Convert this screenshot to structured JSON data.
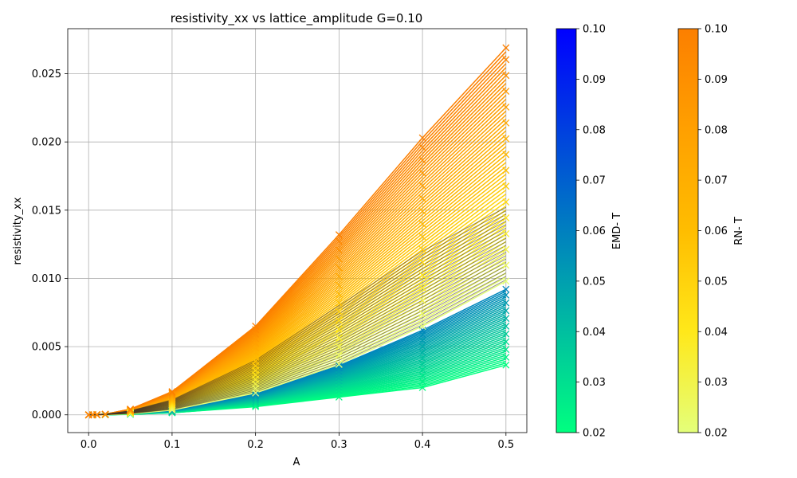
{
  "chart_data": {
    "type": "line",
    "title": "resistivity_xx vs lattice_amplitude G=0.10",
    "xlabel": "A",
    "ylabel": "resistivity_xx",
    "xlim": [
      -0.025,
      0.525
    ],
    "ylim": [
      -0.0013,
      0.0283
    ],
    "x_ticks": [
      0.0,
      0.1,
      0.2,
      0.3,
      0.4,
      0.5
    ],
    "x_tick_labels": [
      "0.0",
      "0.1",
      "0.2",
      "0.3",
      "0.4",
      "0.5"
    ],
    "y_ticks": [
      0.0,
      0.005,
      0.01,
      0.015,
      0.02,
      0.025
    ],
    "y_tick_labels": [
      "0.000",
      "0.005",
      "0.010",
      "0.015",
      "0.020",
      "0.025"
    ],
    "grid": true,
    "marker": "x",
    "x": [
      0.0,
      0.005,
      0.01,
      0.02,
      0.05,
      0.1,
      0.2,
      0.3,
      0.4,
      0.5
    ],
    "series_groups": [
      {
        "name": "EMD",
        "colorbar_label": "EMD- T",
        "colormap": "winter",
        "t_min": 0.02,
        "t_max": 0.1,
        "colorbar_ticks": [
          "0.02",
          "0.03",
          "0.04",
          "0.05",
          "0.06",
          "0.07",
          "0.08",
          "0.09",
          "0.10"
        ],
        "curve_count": 40,
        "shown_t_range": [
          0.02,
          0.058
        ],
        "y_at_t_min": [
          0.0,
          4e-07,
          1.5e-06,
          6e-06,
          3.8e-05,
          0.00015,
          0.0006,
          0.0013,
          0.002,
          0.00365
        ],
        "y_at_t_max": [
          0.0,
          1.5e-06,
          6e-06,
          2.4e-05,
          0.00015,
          0.00033,
          0.00155,
          0.0036,
          0.0062,
          0.0092
        ]
      },
      {
        "name": "RN",
        "colorbar_label": "RN- T",
        "colormap": "Wistia",
        "t_min": 0.02,
        "t_max": 0.1,
        "colorbar_ticks": [
          "0.02",
          "0.03",
          "0.04",
          "0.05",
          "0.06",
          "0.07",
          "0.08",
          "0.09",
          "0.10"
        ],
        "curve_count": 60,
        "shown_t_range": [
          0.02,
          0.1
        ],
        "y_at_t_min": [
          0.0,
          1e-06,
          4e-06,
          1.6e-05,
          8e-05,
          0.00035,
          0.0016,
          0.0037,
          0.0065,
          0.0098
        ],
        "y_at_t_max": [
          0.0,
          3e-06,
          1.2e-05,
          4.8e-05,
          0.00042,
          0.0017,
          0.0065,
          0.0132,
          0.0203,
          0.0269
        ]
      }
    ],
    "overlay_band": {
      "description_color": "dark",
      "y_at_top": [
        0.0,
        3e-06,
        1.2e-05,
        4.8e-05,
        0.0003,
        0.0011,
        0.004,
        0.008,
        0.012,
        0.0152
      ],
      "y_at_bottom": [
        0.0,
        1e-06,
        4e-06,
        1.6e-05,
        0.0001,
        0.0004,
        0.0017,
        0.0038,
        0.0066,
        0.0099
      ]
    }
  }
}
